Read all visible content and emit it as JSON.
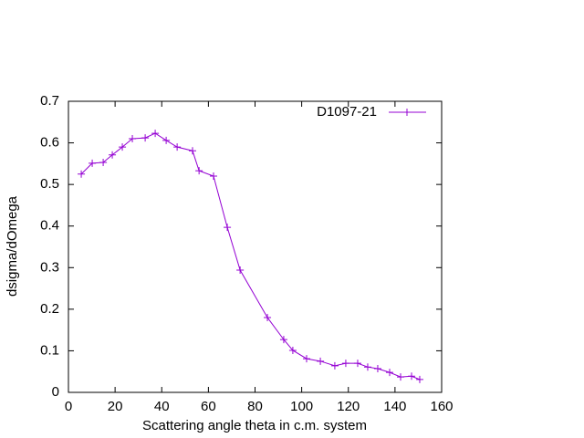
{
  "chart_data": {
    "type": "line",
    "xlabel": "Scattering angle theta in c.m. system",
    "ylabel": "dsigma/dOmega",
    "xlim": [
      0,
      160
    ],
    "xticks": [
      0,
      20,
      40,
      60,
      80,
      100,
      120,
      140,
      160
    ],
    "ylim": [
      0,
      0.7
    ],
    "yticks": [
      0,
      0.1,
      0.2,
      0.3,
      0.4,
      0.5,
      0.6,
      0.7
    ],
    "legend": "top-right",
    "series": [
      {
        "name": "D1097-21",
        "color": "#9400d3",
        "x": [
          5.5,
          10.2,
          14.9,
          18.8,
          23.1,
          27.4,
          32.9,
          37.2,
          41.9,
          46.6,
          53.2,
          56.0,
          62.2,
          68.1,
          73.6,
          85.3,
          92.3,
          96.2,
          102.1,
          108.0,
          114.2,
          118.9,
          124.0,
          128.3,
          132.6,
          137.7,
          142.4,
          147.1,
          150.6
        ],
        "values": [
          0.525,
          0.551,
          0.553,
          0.571,
          0.59,
          0.61,
          0.612,
          0.623,
          0.606,
          0.59,
          0.581,
          0.533,
          0.52,
          0.397,
          0.294,
          0.18,
          0.127,
          0.101,
          0.081,
          0.075,
          0.064,
          0.07,
          0.07,
          0.061,
          0.057,
          0.048,
          0.037,
          0.039,
          0.031
        ]
      }
    ]
  }
}
